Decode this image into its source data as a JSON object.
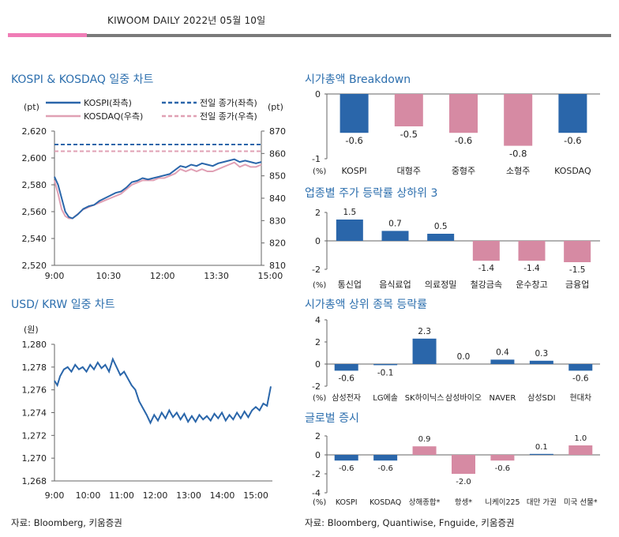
{
  "header": {
    "title": "KIWOOM DAILY 2022년 05월 10일"
  },
  "colors": {
    "blue": "#2a66aa",
    "pink": "#d68aa3",
    "pink_line": "#e0a0b4",
    "title": "#2d6fae",
    "accent_bar": "#f07cb6"
  },
  "titles": {
    "kospi": "KOSPI & KOSDAQ 일중 차트",
    "usdkrw": "USD/ KRW 일중 차트",
    "mcap": "시가총액 Breakdown",
    "sector": "업종별 주가 등락률 상하위 3",
    "top": "시가총액 상위 종목 등락률",
    "global": "글로벌 증시"
  },
  "sources": {
    "left": "자료: Bloomberg,  키움증권",
    "right": "자료: Bloomberg, Quantiwise, Fnguide,  키움증권"
  },
  "chart_data": [
    {
      "id": "kospi_kosdaq",
      "type": "line",
      "left_unit": "(pt)",
      "right_unit": "(pt)",
      "x_ticks": [
        "9:00",
        "10:30",
        "12:00",
        "13:30",
        "15:00"
      ],
      "left_ylim": [
        2520,
        2620
      ],
      "left_ticks": [
        "2,520",
        "2,540",
        "2,560",
        "2,580",
        "2,600",
        "2,620"
      ],
      "right_ylim": [
        810,
        870
      ],
      "right_ticks": [
        "810",
        "820",
        "830",
        "840",
        "850",
        "860",
        "870"
      ],
      "legend": [
        "KOSPI(좌측)",
        "KOSDAQ(우측)",
        "전일 종가(좌측)",
        "전일 종가(우측)"
      ],
      "kospi_prev_close": 2610,
      "kosdaq_prev_close": 861,
      "series": [
        {
          "name": "KOSPI(좌측)",
          "points": [
            [
              0,
              2586
            ],
            [
              4,
              2580
            ],
            [
              8,
              2570
            ],
            [
              12,
              2560
            ],
            [
              16,
              2556
            ],
            [
              20,
              2555
            ],
            [
              26,
              2558
            ],
            [
              32,
              2562
            ],
            [
              38,
              2564
            ],
            [
              44,
              2565
            ],
            [
              50,
              2568
            ],
            [
              56,
              2570
            ],
            [
              62,
              2572
            ],
            [
              68,
              2574
            ],
            [
              74,
              2575
            ],
            [
              80,
              2578
            ],
            [
              86,
              2582
            ],
            [
              92,
              2583
            ],
            [
              98,
              2585
            ],
            [
              104,
              2584
            ],
            [
              110,
              2585
            ],
            [
              116,
              2586
            ],
            [
              122,
              2587
            ],
            [
              128,
              2588
            ],
            [
              134,
              2591
            ],
            [
              140,
              2594
            ],
            [
              146,
              2593
            ],
            [
              152,
              2595
            ],
            [
              158,
              2594
            ],
            [
              164,
              2596
            ],
            [
              170,
              2595
            ],
            [
              176,
              2594
            ],
            [
              182,
              2596
            ],
            [
              188,
              2597
            ],
            [
              194,
              2598
            ],
            [
              200,
              2599
            ],
            [
              206,
              2597
            ],
            [
              212,
              2598
            ],
            [
              218,
              2597
            ],
            [
              224,
              2596
            ],
            [
              230,
              2597
            ]
          ]
        },
        {
          "name": "KOSDAQ(우측)",
          "points": [
            [
              0,
              848
            ],
            [
              4,
              842
            ],
            [
              8,
              835
            ],
            [
              12,
              832
            ],
            [
              16,
              831
            ],
            [
              20,
              831
            ],
            [
              26,
              833
            ],
            [
              32,
              835
            ],
            [
              38,
              836
            ],
            [
              44,
              837
            ],
            [
              50,
              838
            ],
            [
              56,
              839
            ],
            [
              62,
              840
            ],
            [
              68,
              841
            ],
            [
              74,
              842
            ],
            [
              80,
              844
            ],
            [
              86,
              846
            ],
            [
              92,
              847
            ],
            [
              98,
              848
            ],
            [
              104,
              848
            ],
            [
              110,
              848
            ],
            [
              116,
              849
            ],
            [
              122,
              849
            ],
            [
              128,
              850
            ],
            [
              134,
              851
            ],
            [
              140,
              853
            ],
            [
              146,
              852
            ],
            [
              152,
              853
            ],
            [
              158,
              852
            ],
            [
              164,
              853
            ],
            [
              170,
              852
            ],
            [
              176,
              852
            ],
            [
              182,
              853
            ],
            [
              188,
              854
            ],
            [
              194,
              855
            ],
            [
              200,
              856
            ],
            [
              206,
              854
            ],
            [
              212,
              855
            ],
            [
              218,
              854
            ],
            [
              224,
              854
            ],
            [
              230,
              855
            ]
          ]
        }
      ]
    },
    {
      "id": "usd_krw",
      "type": "line",
      "unit": "(원)",
      "x_ticks": [
        "9:00",
        "10:00",
        "11:00",
        "12:00",
        "13:00",
        "14:00",
        "15:00"
      ],
      "ylim": [
        1268,
        1280
      ],
      "y_ticks": [
        "1,268",
        "1,270",
        "1,272",
        "1,274",
        "1,276",
        "1,278",
        "1,280"
      ],
      "series": [
        {
          "name": "USD/KRW",
          "points": [
            [
              0,
              1276.8
            ],
            [
              3,
              1276.4
            ],
            [
              6,
              1277.2
            ],
            [
              10,
              1277.8
            ],
            [
              14,
              1278.0
            ],
            [
              18,
              1277.6
            ],
            [
              22,
              1278.2
            ],
            [
              26,
              1277.8
            ],
            [
              30,
              1278.0
            ],
            [
              34,
              1277.6
            ],
            [
              38,
              1278.2
            ],
            [
              42,
              1277.8
            ],
            [
              46,
              1278.4
            ],
            [
              50,
              1277.9
            ],
            [
              54,
              1278.2
            ],
            [
              58,
              1277.6
            ],
            [
              62,
              1278.7
            ],
            [
              66,
              1278.0
            ],
            [
              70,
              1277.3
            ],
            [
              74,
              1277.6
            ],
            [
              78,
              1277.0
            ],
            [
              82,
              1276.4
            ],
            [
              86,
              1276.0
            ],
            [
              90,
              1275.0
            ],
            [
              94,
              1274.4
            ],
            [
              98,
              1273.8
            ],
            [
              102,
              1273.1
            ],
            [
              106,
              1273.8
            ],
            [
              110,
              1273.3
            ],
            [
              114,
              1274.0
            ],
            [
              118,
              1273.5
            ],
            [
              122,
              1274.2
            ],
            [
              126,
              1273.6
            ],
            [
              130,
              1274.0
            ],
            [
              134,
              1273.4
            ],
            [
              138,
              1273.9
            ],
            [
              142,
              1273.2
            ],
            [
              146,
              1273.7
            ],
            [
              150,
              1273.2
            ],
            [
              154,
              1273.8
            ],
            [
              158,
              1273.4
            ],
            [
              162,
              1273.7
            ],
            [
              166,
              1273.3
            ],
            [
              170,
              1273.9
            ],
            [
              174,
              1273.5
            ],
            [
              178,
              1274.0
            ],
            [
              182,
              1273.3
            ],
            [
              186,
              1273.8
            ],
            [
              190,
              1273.4
            ],
            [
              194,
              1274.0
            ],
            [
              198,
              1273.5
            ],
            [
              202,
              1274.1
            ],
            [
              206,
              1273.6
            ],
            [
              210,
              1274.2
            ],
            [
              214,
              1274.5
            ],
            [
              218,
              1274.2
            ],
            [
              222,
              1274.8
            ],
            [
              226,
              1274.6
            ],
            [
              230,
              1276.3
            ]
          ]
        }
      ]
    },
    {
      "id": "mcap_breakdown",
      "type": "bar",
      "unit": "(%)",
      "ylim": [
        -1,
        0
      ],
      "y_ticks": [
        "0",
        "-1"
      ],
      "categories": [
        "KOSPI",
        "대형주",
        "중형주",
        "소형주",
        "KOSDAQ"
      ],
      "values": [
        -0.6,
        -0.5,
        -0.6,
        -0.8,
        -0.6
      ],
      "labels": [
        "-0.6",
        "-0.5",
        "-0.6",
        "-0.8",
        "-0.6"
      ],
      "colors": [
        "blue",
        "pink",
        "pink",
        "pink",
        "blue"
      ]
    },
    {
      "id": "sector",
      "type": "bar",
      "unit": "(%)",
      "ylim": [
        -2,
        2
      ],
      "y_ticks": [
        "2",
        "0",
        "-2"
      ],
      "categories": [
        "통신업",
        "음식료업",
        "의료정밀",
        "철강금속",
        "운수창고",
        "금융업"
      ],
      "values": [
        1.5,
        0.7,
        0.5,
        -1.4,
        -1.4,
        -1.5
      ],
      "labels": [
        "1.5",
        "0.7",
        "0.5",
        "-1.4",
        "-1.4",
        "-1.5"
      ],
      "colors": [
        "blue",
        "blue",
        "blue",
        "pink",
        "pink",
        "pink"
      ]
    },
    {
      "id": "top_mcap",
      "type": "bar",
      "unit": "(%)",
      "ylim": [
        -2,
        4
      ],
      "y_ticks": [
        "4",
        "2",
        "0",
        "-2"
      ],
      "categories": [
        "삼성전자",
        "LG에솔",
        "SK하이닉스",
        "삼성바이오",
        "NAVER",
        "삼성SDI",
        "현대차"
      ],
      "values": [
        -0.6,
        -0.1,
        2.3,
        0.0,
        0.4,
        0.3,
        -0.6
      ],
      "labels": [
        "-0.6",
        "-0.1",
        "2.3",
        "0.0",
        "0.4",
        "0.3",
        "-0.6"
      ],
      "colors": [
        "blue",
        "blue",
        "blue",
        "blue",
        "blue",
        "blue",
        "blue"
      ]
    },
    {
      "id": "global",
      "type": "bar",
      "unit": "(%)",
      "ylim": [
        -4,
        2
      ],
      "y_ticks": [
        "2",
        "0",
        "-2",
        "-4"
      ],
      "categories": [
        "KOSPI",
        "KOSDAQ",
        "상해종합*",
        "항셍*",
        "니케이225",
        "대만 가권",
        "미국 선물*"
      ],
      "values": [
        -0.6,
        -0.6,
        0.9,
        -2.0,
        -0.6,
        0.1,
        1.0
      ],
      "labels": [
        "-0.6",
        "-0.6",
        "0.9",
        "-2.0",
        "-0.6",
        "0.1",
        "1.0"
      ],
      "colors": [
        "blue",
        "blue",
        "pink",
        "pink",
        "pink",
        "blue",
        "pink"
      ]
    }
  ]
}
